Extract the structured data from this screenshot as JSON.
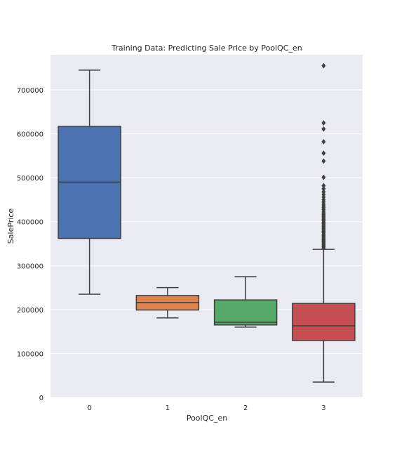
{
  "chart_data": {
    "type": "box",
    "title": "Training Data: Predicting Sale Price by PoolQC_en",
    "xlabel": "PoolQC_en",
    "ylabel": "SalePrice",
    "categories": [
      "0",
      "1",
      "2",
      "3"
    ],
    "ylim": [
      0,
      780000
    ],
    "yticks": [
      0,
      100000,
      200000,
      300000,
      400000,
      500000,
      600000,
      700000
    ],
    "ytick_labels": [
      "0",
      "100000",
      "200000",
      "300000",
      "400000",
      "500000",
      "600000",
      "700000"
    ],
    "grid": true,
    "boxes": [
      {
        "category": "0",
        "color": "#4c72b0",
        "whisker_low": 235000,
        "q1": 362000,
        "median": 490000,
        "q3": 617000,
        "whisker_high": 745000,
        "outliers": []
      },
      {
        "category": "1",
        "color": "#dd8452",
        "whisker_low": 181000,
        "q1": 199000,
        "median": 216000,
        "q3": 232000,
        "whisker_high": 250000,
        "outliers": []
      },
      {
        "category": "2",
        "color": "#55a868",
        "whisker_low": 160000,
        "q1": 165000,
        "median": 171000,
        "q3": 222000,
        "whisker_high": 275000,
        "outliers": []
      },
      {
        "category": "3",
        "color": "#c44e52",
        "whisker_low": 34900,
        "q1": 129500,
        "median": 163000,
        "q3": 214000,
        "whisker_high": 337000,
        "outliers": [
          340000,
          343000,
          345000,
          348000,
          350000,
          353000,
          355000,
          358000,
          360000,
          363000,
          366000,
          369000,
          372000,
          375000,
          378000,
          381000,
          384000,
          387000,
          390000,
          393000,
          396000,
          399000,
          402000,
          405000,
          408000,
          411000,
          414000,
          417000,
          420000,
          424000,
          428000,
          432000,
          436000,
          440000,
          445000,
          450000,
          456000,
          462000,
          468000,
          475000,
          482000,
          501000,
          538000,
          556000,
          582000,
          611000,
          625000,
          755000
        ]
      }
    ]
  }
}
